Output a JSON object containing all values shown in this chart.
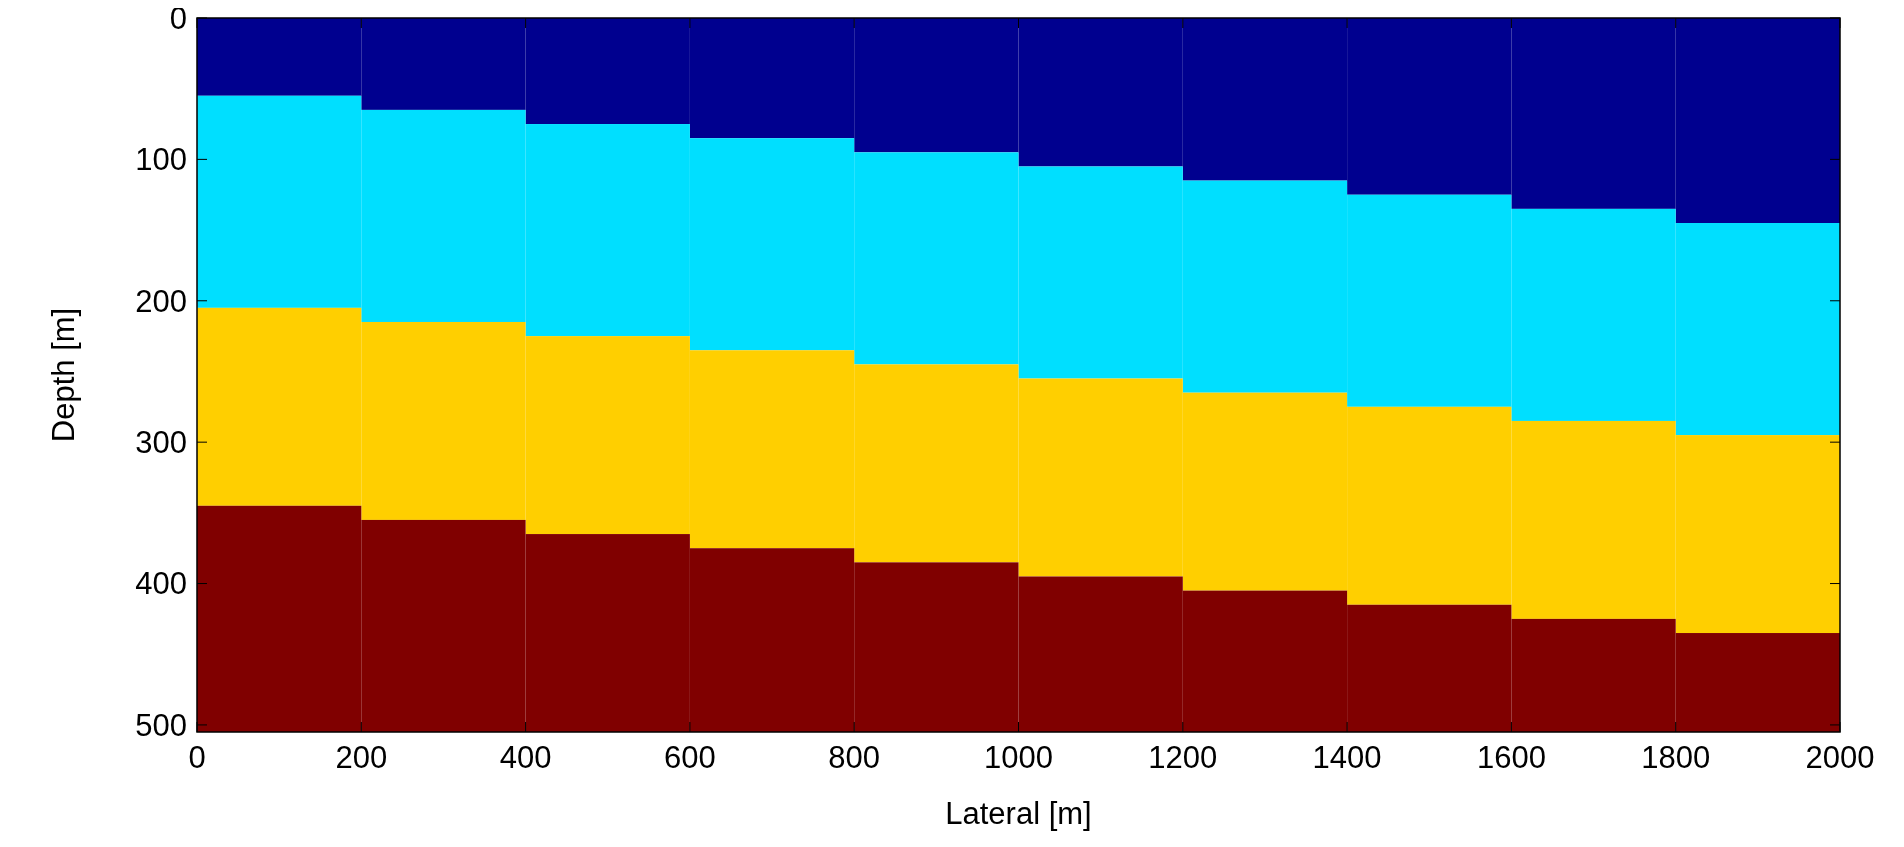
{
  "chart_data": {
    "type": "bar",
    "stacked": true,
    "xlabel": "Lateral [m]",
    "ylabel": "Depth [m]",
    "x": [
      100,
      300,
      500,
      700,
      900,
      1100,
      1300,
      1500,
      1700,
      1900
    ],
    "xlim": [
      0,
      2000
    ],
    "xticks": [
      0,
      200,
      400,
      600,
      800,
      1000,
      1200,
      1400,
      1600,
      1800,
      2000
    ],
    "ylim": [
      505,
      0
    ],
    "yticks": [
      0,
      100,
      200,
      300,
      400,
      500
    ],
    "series": [
      {
        "color": "#00008f",
        "values": [
          55,
          65,
          75,
          85,
          95,
          105,
          115,
          125,
          135,
          145
        ]
      },
      {
        "color": "#00dfff",
        "values": [
          150,
          150,
          150,
          150,
          150,
          150,
          150,
          150,
          150,
          150
        ]
      },
      {
        "color": "#ffcf00",
        "values": [
          140,
          140,
          140,
          140,
          140,
          140,
          140,
          140,
          140,
          140
        ]
      },
      {
        "color": "#800000",
        "values": [
          160,
          150,
          140,
          130,
          120,
          110,
          100,
          90,
          80,
          70
        ]
      }
    ]
  }
}
